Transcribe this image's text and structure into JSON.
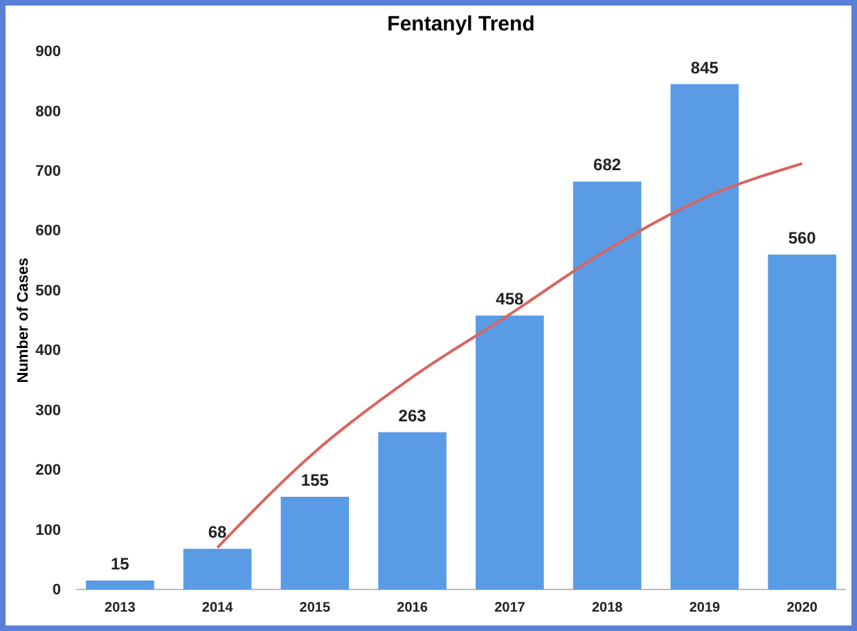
{
  "chart_data": {
    "type": "bar",
    "title": "Fentanyl Trend",
    "ylabel": "Number of Cases",
    "categories": [
      "2013",
      "2014",
      "2015",
      "2016",
      "2017",
      "2018",
      "2019",
      "2020"
    ],
    "series": [
      {
        "color": "#5a9be6",
        "values": [
          15,
          68,
          155,
          263,
          458,
          682,
          845,
          560
        ],
        "value_labels": [
          "15",
          "68",
          "155",
          "263",
          "458",
          "682",
          "845",
          "560"
        ]
      },
      {
        "type": "line",
        "color": "#d9655f",
        "values": [
          null,
          70,
          230,
          355,
          460,
          568,
          655,
          712
        ]
      }
    ],
    "ylim": [
      0,
      900
    ],
    "yticks": [
      0,
      100,
      200,
      300,
      400,
      500,
      600,
      700,
      800,
      900
    ],
    "grid": false,
    "marker": "none",
    "line_style": "solid"
  }
}
